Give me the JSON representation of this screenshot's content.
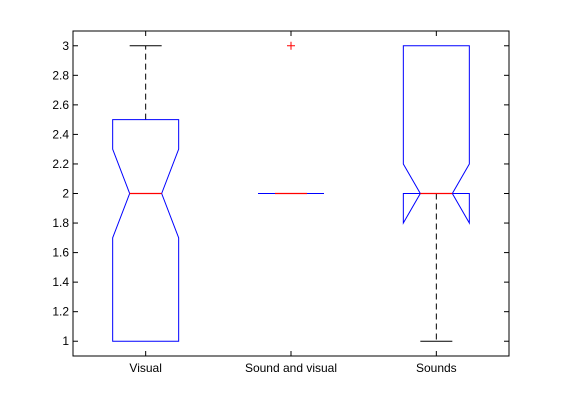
{
  "chart_data": {
    "type": "boxplot",
    "notched": true,
    "categories": [
      "Visual",
      "Sound and visual",
      "Sounds"
    ],
    "ylim": [
      0.9,
      3.1
    ],
    "yticks": [
      "1",
      "1.2",
      "1.4",
      "1.6",
      "1.8",
      "2",
      "2.2",
      "2.4",
      "2.6",
      "2.8",
      "3"
    ],
    "boxes": [
      {
        "q1": 1.0,
        "median": 2.0,
        "q3": 2.5,
        "notch_low": 1.7,
        "notch_high": 2.3,
        "whisker_low": 1.0,
        "whisker_high": 3.0,
        "outliers": []
      },
      {
        "q1": 2.0,
        "median": 2.0,
        "q3": 2.0,
        "notch_low": 2.0,
        "notch_high": 2.0,
        "whisker_low": 2.0,
        "whisker_high": 2.0,
        "outliers": [
          3.0
        ]
      },
      {
        "q1": 2.0,
        "median": 2.0,
        "q3": 3.0,
        "notch_low": 1.8,
        "notch_high": 2.2,
        "whisker_low": 1.0,
        "whisker_high": 3.0,
        "outliers": []
      }
    ],
    "colors": {
      "box": "#0000ff",
      "median": "#ff0000",
      "whisker": "#000000",
      "outlier": "#ff0000"
    },
    "grid": false,
    "legend": "none",
    "title": "",
    "xlabel": "",
    "ylabel": ""
  }
}
